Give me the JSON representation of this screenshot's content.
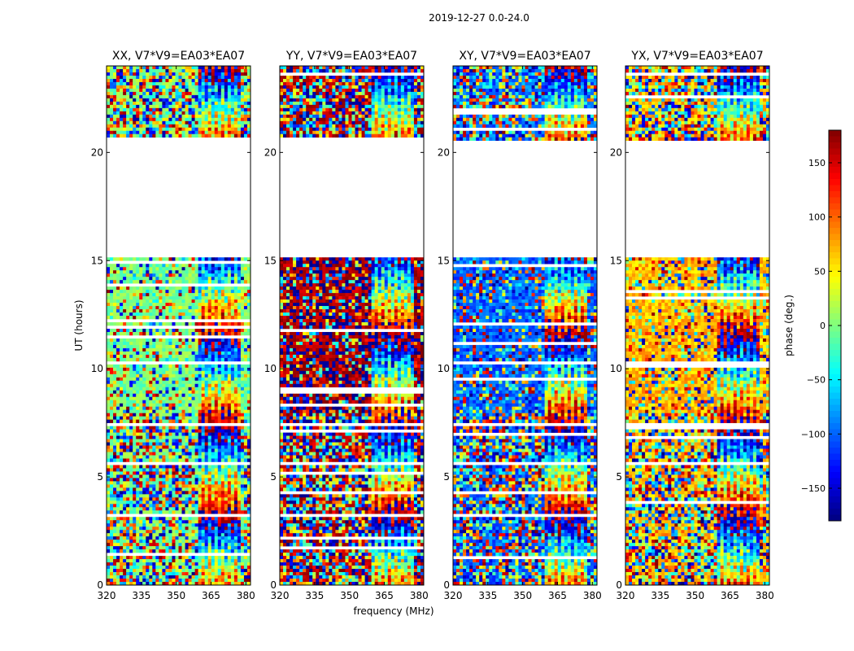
{
  "figure_title": "2019-12-27 0.0-24.0",
  "colors": {
    "jet": [
      "#00007f",
      "#0000ff",
      "#007fff",
      "#00ffff",
      "#7fff7f",
      "#ffff00",
      "#ff7f00",
      "#ff0000",
      "#7f0000"
    ],
    "frame": "#000000",
    "empty": "#ffffff"
  },
  "chart_data": {
    "type": "heatmap",
    "shared": {
      "xlabel": "frequency (MHz)",
      "ylabel": "UT (hours)",
      "xlim": [
        320,
        382
      ],
      "ylim": [
        0,
        24
      ],
      "xticks": [
        320,
        335,
        350,
        365,
        380
      ],
      "yticks": [
        0,
        5,
        10,
        15,
        20
      ],
      "colorbar": {
        "label": "phase (deg.)",
        "range": [
          -180,
          180
        ],
        "ticks": [
          -150,
          -100,
          -50,
          0,
          50,
          100,
          150
        ],
        "tick_labels": [
          "−150",
          "−100",
          "−50",
          "0",
          "50",
          "100",
          "150"
        ]
      },
      "data_gaps_hours": [
        [
          15.2,
          20.5
        ],
        [
          7.3,
          7.5
        ],
        [
          5.5,
          5.7
        ]
      ],
      "channel_segment_boundaries_mhz": [
        360,
        378
      ]
    },
    "panels": [
      {
        "title": "XX, V7*V9=EA03*EA07",
        "mean_phase_deg": 0,
        "note": "mostly near 0 deg with scattered phase noise"
      },
      {
        "title": "YY, V7*V9=EA03*EA07",
        "mean_phase_deg": 170,
        "note": "mostly near +/-180 deg"
      },
      {
        "title": "XY, V7*V9=EA03*EA07",
        "mean_phase_deg": -100,
        "note": "mostly near -100 deg, noisy"
      },
      {
        "title": "YX, V7*V9=EA03*EA07",
        "mean_phase_deg": 70,
        "note": "mostly near +70 deg, noisy"
      }
    ]
  }
}
